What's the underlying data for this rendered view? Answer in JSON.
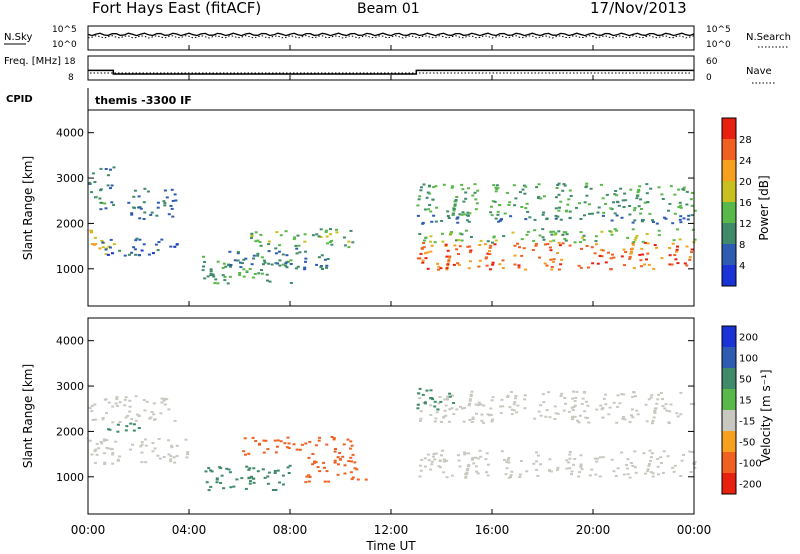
{
  "header": {
    "site": "Fort Hays East (fitACF)",
    "beam": "Beam 01",
    "date": "17/Nov/2013"
  },
  "chart_data": [
    {
      "type": "line",
      "panel": "noise",
      "left_label": "N.Sky",
      "right_label": "N.Search",
      "y_ticks_left": [
        "10^5",
        "10^0"
      ],
      "y_ticks_right": [
        "10^5",
        "10^0"
      ],
      "x_range_hours": [
        0,
        24
      ],
      "series": [
        {
          "name": "N.Sky",
          "level_fraction": 0.65
        },
        {
          "name": "N.Search",
          "level_fraction": 0.55
        }
      ]
    },
    {
      "type": "line",
      "panel": "frequency",
      "left_label": "Freq. [MHz]",
      "right_label": "Nave",
      "left_ticks": [
        "18",
        "8"
      ],
      "right_ticks": [
        "60",
        "0"
      ],
      "x_range_hours": [
        0,
        24
      ],
      "freq_steps": [
        {
          "x": [
            0.0,
            1.0
          ],
          "y": 12.0
        },
        {
          "x": [
            1.0,
            13.0
          ],
          "y": 10.5
        },
        {
          "x": [
            13.0,
            24.0
          ],
          "y": 12.0
        }
      ],
      "freq_ylim": [
        8,
        18
      ]
    },
    {
      "type": "table",
      "panel": "cpid",
      "label": "CPID",
      "value": "themis -3300 IF"
    },
    {
      "type": "heatmap",
      "panel": "power",
      "ylabel": "Slant Range [km]",
      "colorbar_label": "Power [dB]",
      "y_ticks": [
        1000,
        2000,
        3000,
        4000
      ],
      "ylim": [
        180,
        4500
      ],
      "colorbar_ticks": [
        "4",
        "8",
        "12",
        "16",
        "20",
        "24",
        "28"
      ],
      "colorbar_colors": [
        "#1a33d6",
        "#2e5cb0",
        "#3f8a6a",
        "#58b84a",
        "#c8c020",
        "#f7a020",
        "#f06020",
        "#e82010"
      ],
      "blobs": [
        {
          "x": [
            0.0,
            1.0
          ],
          "y": [
            1300,
            1900
          ],
          "value": 20
        },
        {
          "x": [
            0.0,
            1.0
          ],
          "y": [
            2300,
            2700
          ],
          "value": 10
        },
        {
          "x": [
            0.0,
            1.0
          ],
          "y": [
            2700,
            3300
          ],
          "value": 8
        },
        {
          "x": [
            0.5,
            3.5
          ],
          "y": [
            1300,
            1700
          ],
          "value": 6
        },
        {
          "x": [
            1.5,
            3.5
          ],
          "y": [
            2100,
            2800
          ],
          "value": 8
        },
        {
          "x": [
            4.5,
            8.0
          ],
          "y": [
            700,
            1300
          ],
          "value": 12
        },
        {
          "x": [
            6.0,
            10.5
          ],
          "y": [
            1500,
            1900
          ],
          "value": 14
        },
        {
          "x": [
            5.5,
            9.5
          ],
          "y": [
            1000,
            1500
          ],
          "value": 8
        },
        {
          "x": [
            13.0,
            24.0
          ],
          "y": [
            1000,
            1600
          ],
          "value": 26
        },
        {
          "x": [
            13.0,
            24.0
          ],
          "y": [
            1600,
            1900
          ],
          "value": 14
        },
        {
          "x": [
            13.0,
            24.0
          ],
          "y": [
            2200,
            2900
          ],
          "value": 12
        },
        {
          "x": [
            13.0,
            24.0
          ],
          "y": [
            2000,
            2200
          ],
          "value": 8
        }
      ]
    },
    {
      "type": "heatmap",
      "panel": "velocity",
      "ylabel": "Slant Range [km]",
      "colorbar_label": "Velocity [m s⁻¹]",
      "y_ticks": [
        1000,
        2000,
        3000,
        4000
      ],
      "ylim": [
        180,
        4500
      ],
      "colorbar_ticks": [
        "200",
        "100",
        "50",
        "15",
        "-15",
        "-50",
        "-100",
        "-200"
      ],
      "colorbar_colors": [
        "#1a33d6",
        "#2e5cb0",
        "#3f8a6a",
        "#58b84a",
        "#c8c8c0",
        "#f7a020",
        "#f06020",
        "#e82010"
      ],
      "blobs": [
        {
          "x": [
            0.0,
            4.0
          ],
          "y": [
            1300,
            1900
          ],
          "value": 0
        },
        {
          "x": [
            0.0,
            3.5
          ],
          "y": [
            2200,
            2800
          ],
          "value": 0
        },
        {
          "x": [
            0.5,
            2.5
          ],
          "y": [
            2000,
            2200
          ],
          "value": 60
        },
        {
          "x": [
            4.5,
            8.0
          ],
          "y": [
            700,
            1300
          ],
          "value": 60
        },
        {
          "x": [
            6.0,
            10.5
          ],
          "y": [
            1500,
            1900
          ],
          "value": -60
        },
        {
          "x": [
            8.5,
            11.0
          ],
          "y": [
            900,
            1500
          ],
          "value": -70
        },
        {
          "x": [
            13.0,
            24.0
          ],
          "y": [
            1000,
            1600
          ],
          "value": 0
        },
        {
          "x": [
            13.0,
            24.0
          ],
          "y": [
            2200,
            2900
          ],
          "value": 0
        },
        {
          "x": [
            13.0,
            14.5
          ],
          "y": [
            2500,
            3000
          ],
          "value": 60
        }
      ]
    }
  ],
  "x_axis": {
    "ticks": [
      "00:00",
      "04:00",
      "08:00",
      "12:00",
      "16:00",
      "20:00",
      "00:00"
    ],
    "label": "Time UT"
  }
}
